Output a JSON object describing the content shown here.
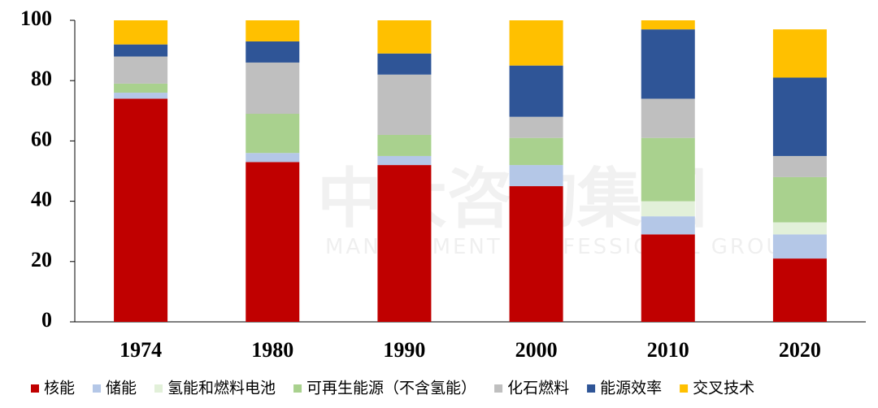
{
  "chart_data": {
    "type": "stacked_bar",
    "watermark": {
      "title": "中大咨询集团",
      "subtitle": "MANAGEMENT PROFESSIONAL GROUP"
    },
    "categories": [
      "1974",
      "1980",
      "1990",
      "2000",
      "2010",
      "2020"
    ],
    "series": [
      {
        "name": "核能",
        "color": "#c00000",
        "values": [
          74,
          53,
          52,
          45,
          29,
          21
        ]
      },
      {
        "name": "储能",
        "color": "#b4c7e7",
        "values": [
          2,
          3,
          3,
          7,
          6,
          8
        ]
      },
      {
        "name": "氢能和燃料电池",
        "color": "#e2f0d9",
        "values": [
          0,
          0,
          0,
          0,
          5,
          4
        ]
      },
      {
        "name": "可再生能源（不含氢能）",
        "color": "#a9d18e",
        "values": [
          3,
          13,
          7,
          9,
          21,
          15
        ]
      },
      {
        "name": "化石燃料",
        "color": "#bfbfbf",
        "values": [
          9,
          17,
          20,
          7,
          13,
          7
        ]
      },
      {
        "name": "能源效率",
        "color": "#2f5597",
        "values": [
          4,
          7,
          7,
          17,
          23,
          26
        ]
      },
      {
        "name": "交叉技术",
        "color": "#ffc000",
        "values": [
          8,
          7,
          11,
          15,
          3,
          16
        ]
      }
    ],
    "ylim": [
      0,
      100
    ],
    "yticks": [
      0,
      20,
      40,
      60,
      80,
      100
    ],
    "grid": false,
    "legend": "bottom"
  }
}
